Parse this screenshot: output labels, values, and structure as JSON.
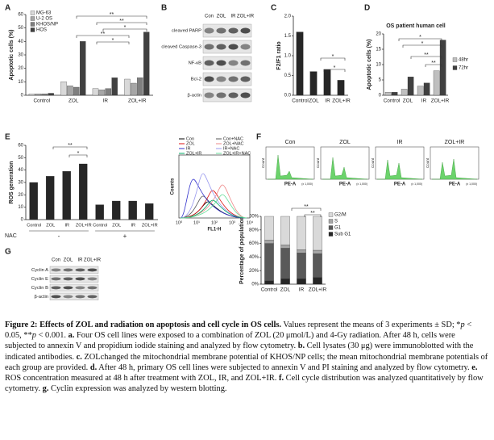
{
  "panel_labels": [
    "A",
    "B",
    "C",
    "D",
    "E",
    "F",
    "G"
  ],
  "chart_data": [
    {
      "type": "bar",
      "ylabel": "Apoptotic cells (%)",
      "categories": [
        "Control",
        "ZOL",
        "IR",
        "ZOL+IR"
      ],
      "series": [
        {
          "name": "MG-63",
          "color": "#d9d9d9",
          "values": [
            1,
            10,
            5,
            12
          ]
        },
        {
          "name": "U-2 OS",
          "color": "#a6a6a6",
          "values": [
            1,
            7,
            4,
            9
          ]
        },
        {
          "name": "KHOS/NP",
          "color": "#7f7f7f",
          "values": [
            1,
            6,
            5,
            13
          ]
        },
        {
          "name": "HOS",
          "color": "#404040",
          "values": [
            1.5,
            40,
            13,
            47
          ]
        }
      ],
      "ylim": [
        0,
        60
      ],
      "yticks": [
        0,
        10,
        20,
        30,
        40,
        50,
        60
      ],
      "legend": "upper left",
      "annotations": [
        "**",
        "**",
        "*",
        "**",
        "*"
      ]
    },
    {
      "type": "bar",
      "ylabel": "F2/F1 ratio",
      "categories": [
        "Control",
        "ZOL",
        "IR",
        "ZOL+IR"
      ],
      "values": [
        1.6,
        0.6,
        0.65,
        0.38
      ],
      "color": "#262626",
      "ylim": [
        0,
        2
      ],
      "yticks": [
        {
          "value": 0,
          "label": "0.0"
        },
        {
          "value": 0.5,
          "label": "0.5"
        },
        {
          "value": 1,
          "label": "1.0"
        },
        {
          "value": 1.5,
          "label": "1.5"
        },
        {
          "value": 2,
          "label": "2.0"
        }
      ],
      "annotations": [
        "*",
        "*"
      ]
    },
    {
      "type": "bar",
      "title": "OS patient human cell",
      "ylabel": "Apoptotic cells (%)",
      "categories": [
        "Control",
        "ZOL",
        "IR",
        "ZOL+IR"
      ],
      "series": [
        {
          "name": "48hr",
          "color": "#bfbfbf",
          "values": [
            1,
            2,
            3,
            8
          ]
        },
        {
          "name": "72hr",
          "color": "#404040",
          "values": [
            1,
            6,
            4,
            18
          ]
        }
      ],
      "ylim": [
        0,
        20
      ],
      "yticks": [
        0,
        5,
        10,
        15,
        20
      ],
      "legend": "right",
      "annotations": [
        "*",
        "*",
        "**",
        "**"
      ]
    },
    {
      "type": "bar",
      "ylabel": "ROS generation",
      "categories": [
        "Control",
        "ZOL",
        "IR",
        "ZOL+IR",
        "Control",
        "ZOL",
        "IR",
        "ZOL+IR"
      ],
      "values": [
        30,
        35,
        39,
        45,
        12,
        15,
        15,
        13
      ],
      "color": "#262626",
      "ylim": [
        0,
        60
      ],
      "yticks": [
        0,
        10,
        20,
        30,
        40,
        50,
        60
      ],
      "annotations": [
        "**",
        "*"
      ],
      "row_label": "NAC",
      "row_signs": [
        "-",
        "+"
      ]
    },
    {
      "type": "bar",
      "stacked": true,
      "ylabel": "Percentage of population",
      "categories": [
        "Control",
        "ZOL",
        "IR",
        "ZOL+IR"
      ],
      "series": [
        {
          "name": "Sub G1",
          "color": "#262626",
          "values": [
            5,
            8,
            8,
            10
          ]
        },
        {
          "name": "G1",
          "color": "#595959",
          "values": [
            55,
            45,
            38,
            35
          ]
        },
        {
          "name": "S",
          "color": "#a6a6a6",
          "values": [
            5,
            5,
            5,
            5
          ]
        },
        {
          "name": "G2/M",
          "color": "#d9d9d9",
          "values": [
            35,
            42,
            49,
            50
          ]
        }
      ],
      "ylim": [
        0,
        100
      ],
      "yticks": [
        {
          "value": 0,
          "label": "0%"
        },
        {
          "value": 20,
          "label": "20%"
        },
        {
          "value": 40,
          "label": "40%"
        },
        {
          "value": 60,
          "label": "60%"
        },
        {
          "value": 80,
          "label": "80%"
        },
        {
          "value": 100,
          "label": "100%"
        }
      ],
      "legend": "upper right",
      "annotations": [
        "**",
        "**"
      ]
    }
  ],
  "blots": [
    {
      "lanes": [
        "Con",
        "ZOL",
        "IR",
        "ZOL+IR"
      ],
      "rows": [
        "cleaved PARP",
        "cleaved Caspase-3",
        "NF-κB",
        "Bcl-2",
        "β-actin"
      ]
    },
    {
      "lanes": [
        "Con",
        "ZOL",
        "IR",
        "ZOL+IR"
      ],
      "rows": [
        "Cyclin A",
        "Cyclin E",
        "Cyclin B",
        "β-actin"
      ]
    }
  ],
  "ros_flow": {
    "legend": [
      "Con",
      "Con+NAC",
      "ZOL",
      "ZOL+NAC",
      "IR",
      "IR+NAC",
      "ZOL+IR",
      "ZOL+IR+NAC"
    ],
    "ylabel": "Counts",
    "xlabel": "FL1-H",
    "xtick_labels": [
      "10⁰",
      "10¹",
      "10²",
      "10³",
      "10⁴"
    ]
  },
  "cycle_flow": {
    "titles": [
      "Con",
      "ZOL",
      "IR",
      "ZOL+IR"
    ],
    "xlabel": "PE-A",
    "x_unit": "(x 1,000)",
    "ylabel": "Count"
  },
  "caption": {
    "parts": [
      "Figure 2: Effects of ZOL and radiation on apoptosis and cell cycle in OS cells.",
      " Values represent the means of 3 experiments ± SD; *",
      "p",
      " < 0.05, **",
      "p",
      " < 0.001. ",
      "a.",
      " Four OS cell lines were exposed to a combination of ZOL (20 μmol/L) and 4-Gy radiation. After 48 h, cells were subjected to annexin V and propidium iodide staining and analyzed by flow cytometry. ",
      "b.",
      " Cell lysates (30 μg) were immunoblotted with the indicated antibodies. ",
      "c.",
      " ZOLchanged the mitochondrial membrane potential of KHOS/NP cells; the mean mitochondrial membrane potentials of each group are provided. ",
      "d.",
      " After 48 h, primary OS cell lines were subjected to annexin V and PI staining and analyzed by flow cytometry. ",
      "e.",
      " ROS concentration measured at 48 h after treatment with ZOL, IR, and ZOL+IR. ",
      "f.",
      " Cell cycle distribution was analyzed quantitatively by flow cytometry. ",
      "g.",
      " Cyclin expression was analyzed by western blotting."
    ]
  }
}
